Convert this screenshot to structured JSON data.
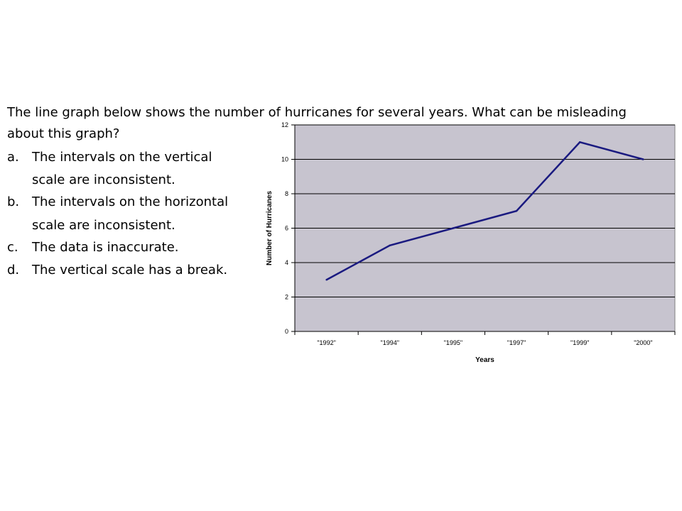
{
  "question": {
    "line1": " The line graph below shows the number  of hurricanes for several years.  What can be misleading",
    "line2": "about this graph?"
  },
  "options": [
    {
      "letter": "a.",
      "line1": "The intervals on the vertical",
      "line2": "scale are inconsistent."
    },
    {
      "letter": "b.",
      "line1": "The intervals on the horizontal",
      "line2": "scale are inconsistent."
    },
    {
      "letter": "c.",
      "line1": "The data is inaccurate.",
      "line2": ""
    },
    {
      "letter": "d.",
      "line1": "The vertical scale has a break.",
      "line2": ""
    }
  ],
  "chart_data": {
    "type": "line",
    "categories": [
      "\"1992\"",
      "\"1994\"",
      "\"1995\"",
      "\"1997\"",
      "\"1999\"",
      "\"2000\""
    ],
    "values": [
      3,
      5,
      6,
      7,
      11,
      10
    ],
    "title": "",
    "xlabel": "Years",
    "ylabel": "Number of Hurricanes",
    "ylim": [
      0,
      12
    ],
    "yticks": [
      0,
      2,
      4,
      6,
      8,
      10,
      12
    ],
    "grid": true,
    "line_color": "#1a1a80",
    "plot_bg": "#c7c4cf"
  }
}
